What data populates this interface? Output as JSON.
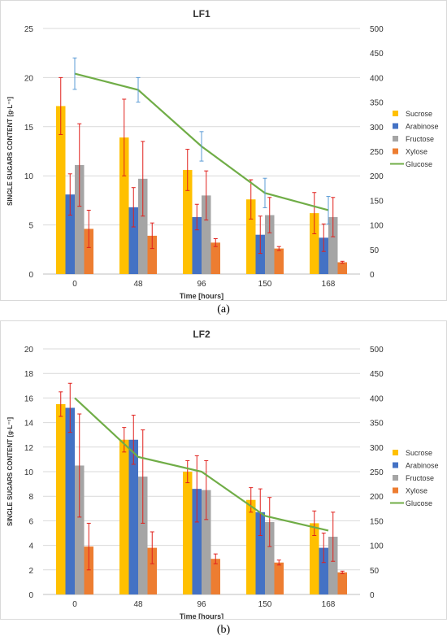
{
  "captions": [
    "(a)",
    "(b)"
  ],
  "chart_data": [
    {
      "type": "bar",
      "title": "LF1",
      "xlabel": "Time [hours]",
      "ylabel": "SINGLE SUGARS CONTENT  [g·L⁻¹]",
      "categories": [
        "0",
        "48",
        "96",
        "150",
        "168"
      ],
      "ylim": [
        0,
        25
      ],
      "yticks": [
        0,
        5,
        10,
        15,
        20,
        25
      ],
      "y2lim": [
        0,
        500
      ],
      "y2ticks": [
        0,
        50,
        100,
        150,
        200,
        250,
        300,
        350,
        400,
        450,
        500
      ],
      "grid": true,
      "legend_position": "right",
      "series": [
        {
          "name": "Sucrose",
          "color": "#FFC000",
          "values": [
            17.1,
            13.9,
            10.6,
            7.6,
            6.2
          ],
          "errors": [
            2.9,
            3.9,
            2.1,
            2.0,
            2.1
          ]
        },
        {
          "name": "Arabinose",
          "color": "#4472C4",
          "values": [
            8.1,
            6.8,
            5.8,
            4.0,
            3.7
          ],
          "errors": [
            2.1,
            2.0,
            1.3,
            1.9,
            1.4
          ]
        },
        {
          "name": "Fructose",
          "color": "#A5A5A5",
          "values": [
            11.1,
            9.7,
            8.0,
            6.0,
            5.8
          ],
          "errors": [
            4.2,
            3.8,
            2.5,
            1.8,
            2.0
          ]
        },
        {
          "name": "Xylose",
          "color": "#ED7D31",
          "values": [
            4.6,
            3.9,
            3.2,
            2.6,
            1.2
          ],
          "errors": [
            1.9,
            1.3,
            0.4,
            0.2,
            0.1
          ]
        }
      ],
      "line": {
        "name": "Glucose",
        "color": "#70AD47",
        "axis": "right",
        "values": [
          408,
          375,
          260,
          165,
          130
        ],
        "errors": [
          32,
          25,
          30,
          30,
          28
        ]
      }
    },
    {
      "type": "bar",
      "title": "LF2",
      "xlabel": "Time [hours]",
      "ylabel": "SINGLE SUGARS CONTENT  [g·L⁻¹]",
      "categories": [
        "0",
        "48",
        "96",
        "150",
        "168"
      ],
      "ylim": [
        0,
        20
      ],
      "yticks": [
        0,
        2,
        4,
        6,
        8,
        10,
        12,
        14,
        16,
        18,
        20
      ],
      "y2lim": [
        0,
        500
      ],
      "y2ticks": [
        0,
        50,
        100,
        150,
        200,
        250,
        300,
        350,
        400,
        450,
        500
      ],
      "grid": true,
      "legend_position": "right",
      "series": [
        {
          "name": "Sucrose",
          "color": "#FFC000",
          "values": [
            15.5,
            12.6,
            10.0,
            7.7,
            5.8
          ],
          "errors": [
            1.0,
            1.0,
            0.9,
            1.0,
            1.0
          ]
        },
        {
          "name": "Arabinose",
          "color": "#4472C4",
          "values": [
            15.2,
            12.6,
            8.6,
            6.7,
            3.8
          ],
          "errors": [
            2.0,
            2.0,
            2.7,
            1.9,
            1.2
          ]
        },
        {
          "name": "Fructose",
          "color": "#A5A5A5",
          "values": [
            10.5,
            9.6,
            8.5,
            5.9,
            4.7
          ],
          "errors": [
            4.2,
            3.8,
            2.4,
            2.0,
            2.0
          ]
        },
        {
          "name": "Xylose",
          "color": "#ED7D31",
          "values": [
            3.9,
            3.8,
            2.9,
            2.6,
            1.8
          ],
          "errors": [
            1.9,
            1.3,
            0.4,
            0.2,
            0.1
          ]
        }
      ],
      "line": {
        "name": "Glucose",
        "color": "#70AD47",
        "axis": "right",
        "values": [
          400,
          280,
          250,
          160,
          130
        ],
        "errors": [
          0,
          0,
          0,
          0,
          0
        ]
      }
    }
  ]
}
